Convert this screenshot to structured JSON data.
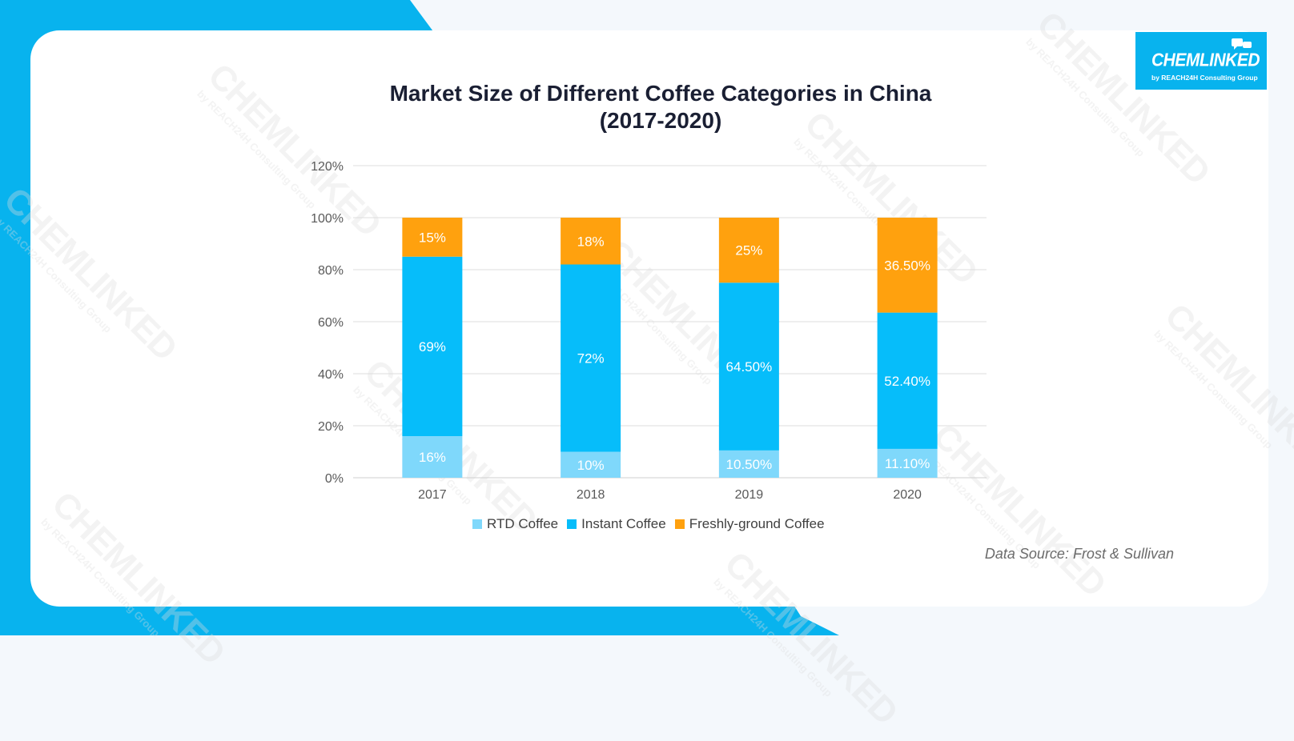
{
  "logo": {
    "name": "CHEMLINKED",
    "tagline": "by REACH24H Consulting Group"
  },
  "chart_data": {
    "type": "bar",
    "stacked": true,
    "title_lines": [
      "Market Size of Different Coffee Categories in China",
      "(2017-2020)"
    ],
    "categories": [
      "2017",
      "2018",
      "2019",
      "2020"
    ],
    "series": [
      {
        "name": "RTD Coffee",
        "color": "#7fd8fb",
        "values": [
          16,
          10,
          10.5,
          11.1
        ],
        "labels": [
          "16%",
          "10%",
          "10.50%",
          "11.10%"
        ]
      },
      {
        "name": "Instant Coffee",
        "color": "#06bdfa",
        "values": [
          69,
          72,
          64.5,
          52.4
        ],
        "labels": [
          "69%",
          "72%",
          "64.50%",
          "52.40%"
        ]
      },
      {
        "name": "Freshly-ground Coffee",
        "color": "#ffa10e",
        "values": [
          15,
          18,
          25,
          36.5
        ],
        "labels": [
          "15%",
          "18%",
          "25%",
          "36.50%"
        ]
      }
    ],
    "ylim": [
      0,
      120
    ],
    "y_ticks": [
      "0%",
      "20%",
      "40%",
      "60%",
      "80%",
      "100%",
      "120%"
    ],
    "grid": true,
    "legend_position": "bottom"
  },
  "source": "Data Source: Frost & Sullivan",
  "colors": {
    "accent": "#08b3ee",
    "title": "#1a1f33"
  }
}
